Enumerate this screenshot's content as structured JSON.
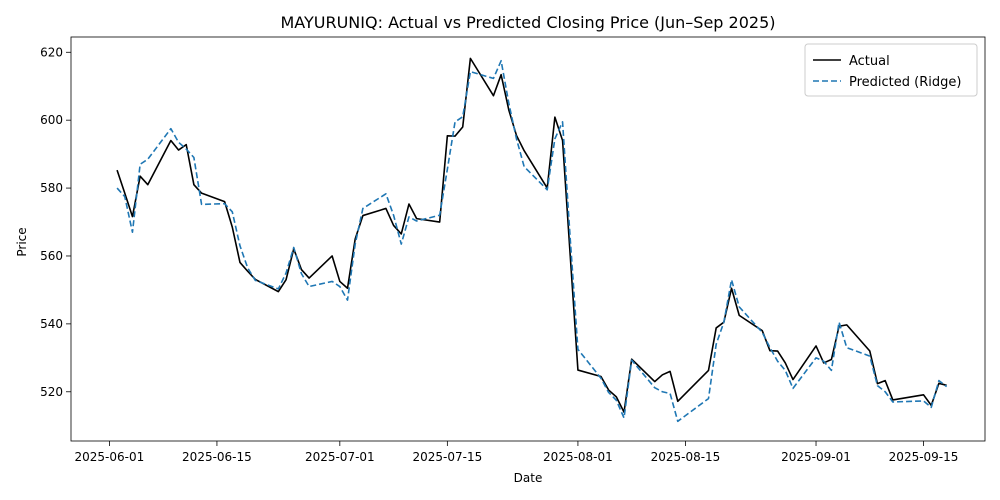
{
  "chart_data": {
    "type": "line",
    "title": "MAYURUNIQ: Actual vs Predicted Closing Price (Jun–Sep 2025)",
    "xlabel": "Date",
    "ylabel": "Price",
    "xlim": [
      "2025-05-27",
      "2025-09-23"
    ],
    "ylim": [
      505.5,
      624.5
    ],
    "xticks": [
      "2025-06-01",
      "2025-06-15",
      "2025-07-01",
      "2025-07-15",
      "2025-08-01",
      "2025-08-15",
      "2025-09-01",
      "2025-09-15"
    ],
    "yticks": [
      520,
      540,
      560,
      580,
      600,
      620
    ],
    "grid": false,
    "legend": {
      "placement": "top-right",
      "entries": [
        "Actual",
        "Predicted (Ridge)"
      ]
    },
    "series": [
      {
        "name": "Actual",
        "color": "#000000",
        "style": "solid",
        "points": [
          [
            "2025-06-02",
            585.3
          ],
          [
            "2025-06-03",
            578.5
          ],
          [
            "2025-06-04",
            571.6
          ],
          [
            "2025-06-05",
            583.5
          ],
          [
            "2025-06-06",
            581.0
          ],
          [
            "2025-06-09",
            594.0
          ],
          [
            "2025-06-10",
            591.2
          ],
          [
            "2025-06-11",
            592.8
          ],
          [
            "2025-06-12",
            581.0
          ],
          [
            "2025-06-13",
            578.5
          ],
          [
            "2025-06-16",
            576.0
          ],
          [
            "2025-06-17",
            568.5
          ],
          [
            "2025-06-18",
            558.1
          ],
          [
            "2025-06-19",
            555.5
          ],
          [
            "2025-06-20",
            553.1
          ],
          [
            "2025-06-23",
            549.5
          ],
          [
            "2025-06-24",
            553.0
          ],
          [
            "2025-06-25",
            562.1
          ],
          [
            "2025-06-26",
            556.0
          ],
          [
            "2025-06-27",
            553.5
          ],
          [
            "2025-06-30",
            560.0
          ],
          [
            "2025-07-01",
            552.5
          ],
          [
            "2025-07-02",
            550.5
          ],
          [
            "2025-07-03",
            565.0
          ],
          [
            "2025-07-04",
            571.9
          ],
          [
            "2025-07-07",
            574.0
          ],
          [
            "2025-07-08",
            569.0
          ],
          [
            "2025-07-09",
            566.5
          ],
          [
            "2025-07-10",
            575.3
          ],
          [
            "2025-07-11",
            571.0
          ],
          [
            "2025-07-14",
            570.0
          ],
          [
            "2025-07-15",
            595.4
          ],
          [
            "2025-07-16",
            595.3
          ],
          [
            "2025-07-17",
            598.0
          ],
          [
            "2025-07-18",
            618.2
          ],
          [
            "2025-07-21",
            607.2
          ],
          [
            "2025-07-22",
            613.4
          ],
          [
            "2025-07-23",
            603.0
          ],
          [
            "2025-07-24",
            595.5
          ],
          [
            "2025-07-25",
            591.0
          ],
          [
            "2025-07-28",
            580.0
          ],
          [
            "2025-07-29",
            600.9
          ],
          [
            "2025-07-30",
            594.0
          ],
          [
            "2025-07-31",
            560.0
          ],
          [
            "2025-08-01",
            526.4
          ],
          [
            "2025-08-04",
            524.5
          ],
          [
            "2025-08-05",
            520.5
          ],
          [
            "2025-08-06",
            518.5
          ],
          [
            "2025-08-07",
            514.0
          ],
          [
            "2025-08-08",
            529.6
          ],
          [
            "2025-08-11",
            523.0
          ],
          [
            "2025-08-12",
            525.0
          ],
          [
            "2025-08-13",
            526.0
          ],
          [
            "2025-08-14",
            517.2
          ],
          [
            "2025-08-18",
            526.3
          ],
          [
            "2025-08-19",
            538.8
          ],
          [
            "2025-08-20",
            540.5
          ],
          [
            "2025-08-21",
            550.5
          ],
          [
            "2025-08-22",
            542.5
          ],
          [
            "2025-08-25",
            538.0
          ],
          [
            "2025-08-26",
            532.1
          ],
          [
            "2025-08-27",
            532.0
          ],
          [
            "2025-08-28",
            528.5
          ],
          [
            "2025-08-29",
            523.6
          ],
          [
            "2025-09-01",
            533.5
          ],
          [
            "2025-09-02",
            528.5
          ],
          [
            "2025-09-03",
            529.5
          ],
          [
            "2025-09-04",
            539.3
          ],
          [
            "2025-09-05",
            539.7
          ],
          [
            "2025-09-08",
            532.0
          ],
          [
            "2025-09-09",
            522.4
          ],
          [
            "2025-09-10",
            523.3
          ],
          [
            "2025-09-11",
            517.6
          ],
          [
            "2025-09-15",
            519.1
          ],
          [
            "2025-09-16",
            516.0
          ],
          [
            "2025-09-17",
            522.5
          ],
          [
            "2025-09-18",
            521.9
          ]
        ]
      },
      {
        "name": "Predicted (Ridge)",
        "color": "#1f77b4",
        "style": "dashed",
        "points": [
          [
            "2025-06-02",
            580.0
          ],
          [
            "2025-06-03",
            577.5
          ],
          [
            "2025-06-04",
            567.0
          ],
          [
            "2025-06-05",
            587.0
          ],
          [
            "2025-06-06",
            588.5
          ],
          [
            "2025-06-09",
            597.5
          ],
          [
            "2025-06-10",
            593.5
          ],
          [
            "2025-06-11",
            591.5
          ],
          [
            "2025-06-12",
            589.0
          ],
          [
            "2025-06-13",
            575.2
          ],
          [
            "2025-06-16",
            575.4
          ],
          [
            "2025-06-17",
            573.0
          ],
          [
            "2025-06-18",
            563.0
          ],
          [
            "2025-06-19",
            556.5
          ],
          [
            "2025-06-20",
            552.8
          ],
          [
            "2025-06-23",
            550.3
          ],
          [
            "2025-06-24",
            555.0
          ],
          [
            "2025-06-25",
            562.5
          ],
          [
            "2025-06-26",
            554.8
          ],
          [
            "2025-06-27",
            551.0
          ],
          [
            "2025-06-30",
            552.5
          ],
          [
            "2025-07-01",
            551.0
          ],
          [
            "2025-07-02",
            547.0
          ],
          [
            "2025-07-03",
            563.5
          ],
          [
            "2025-07-04",
            574.0
          ],
          [
            "2025-07-07",
            578.3
          ],
          [
            "2025-07-08",
            572.0
          ],
          [
            "2025-07-09",
            563.5
          ],
          [
            "2025-07-10",
            571.5
          ],
          [
            "2025-07-11",
            570.3
          ],
          [
            "2025-07-14",
            572.0
          ],
          [
            "2025-07-15",
            585.5
          ],
          [
            "2025-07-16",
            599.5
          ],
          [
            "2025-07-17",
            601.0
          ],
          [
            "2025-07-18",
            614.3
          ],
          [
            "2025-07-21",
            612.3
          ],
          [
            "2025-07-22",
            617.5
          ],
          [
            "2025-07-23",
            605.0
          ],
          [
            "2025-07-24",
            594.5
          ],
          [
            "2025-07-25",
            586.3
          ],
          [
            "2025-07-28",
            579.5
          ],
          [
            "2025-07-29",
            594.5
          ],
          [
            "2025-07-30",
            599.5
          ],
          [
            "2025-07-31",
            565.0
          ],
          [
            "2025-08-01",
            532.5
          ],
          [
            "2025-08-04",
            524.0
          ],
          [
            "2025-08-05",
            519.8
          ],
          [
            "2025-08-06",
            517.5
          ],
          [
            "2025-08-07",
            512.3
          ],
          [
            "2025-08-08",
            529.3
          ],
          [
            "2025-08-11",
            521.2
          ],
          [
            "2025-08-12",
            520.0
          ],
          [
            "2025-08-13",
            519.5
          ],
          [
            "2025-08-14",
            511.3
          ],
          [
            "2025-08-18",
            518.0
          ],
          [
            "2025-08-19",
            534.0
          ],
          [
            "2025-08-20",
            540.5
          ],
          [
            "2025-08-21",
            553.0
          ],
          [
            "2025-08-22",
            545.0
          ],
          [
            "2025-08-25",
            537.5
          ],
          [
            "2025-08-26",
            533.0
          ],
          [
            "2025-08-27",
            529.0
          ],
          [
            "2025-08-28",
            526.3
          ],
          [
            "2025-08-29",
            521.0
          ],
          [
            "2025-09-01",
            530.0
          ],
          [
            "2025-09-02",
            529.0
          ],
          [
            "2025-09-03",
            526.3
          ],
          [
            "2025-09-04",
            540.5
          ],
          [
            "2025-09-05",
            533.0
          ],
          [
            "2025-09-08",
            530.5
          ],
          [
            "2025-09-09",
            521.8
          ],
          [
            "2025-09-10",
            520.0
          ],
          [
            "2025-09-11",
            517.0
          ],
          [
            "2025-09-15",
            517.3
          ],
          [
            "2025-09-16",
            515.4
          ],
          [
            "2025-09-17",
            523.3
          ],
          [
            "2025-09-18",
            521.5
          ]
        ]
      }
    ]
  }
}
